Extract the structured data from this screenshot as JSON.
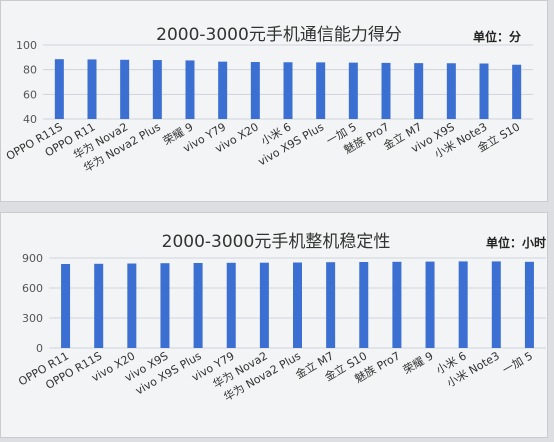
{
  "colors": {
    "bar": "#3b6fd2",
    "grid": "#cfd3da",
    "panel": "#f3f4f5"
  },
  "chart_data": [
    {
      "type": "bar",
      "title": "2000-3000元手机通信能力得分",
      "unit": "单位：分",
      "xlabel": "",
      "ylabel": "",
      "ylim": [
        40,
        100
      ],
      "yticks": [
        "40",
        "60",
        "80",
        "100"
      ],
      "grid": true,
      "categories": [
        "OPPO R11S",
        "OPPO R11",
        "华为 Nova2",
        "华为 Nova2 Plus",
        "荣耀 9",
        "vivo Y79",
        "vivo X20",
        "小米 6",
        "vivo X9S Plus",
        "一加 5",
        "魅族 Pro7",
        "金立 M7",
        "vivo X9S",
        "小米 Note3",
        "金立 S10"
      ],
      "values": [
        88.5,
        88.3,
        88.0,
        87.8,
        87.5,
        86.5,
        86.2,
        86.0,
        85.9,
        85.7,
        85.5,
        85.3,
        85.2,
        85.0,
        84.0
      ]
    },
    {
      "type": "bar",
      "title": "2000-3000元手机整机稳定性",
      "unit": "单位：小时",
      "xlabel": "",
      "ylabel": "",
      "ylim": [
        0,
        900
      ],
      "yticks": [
        "0",
        "300",
        "600",
        "900"
      ],
      "grid": true,
      "categories": [
        "OPPO R11",
        "OPPO R11S",
        "vivo X20",
        "vivo X9S",
        "vivo X9S Plus",
        "vivo Y79",
        "华为 Nova2",
        "华为 Nova2 Plus",
        "金立 M7",
        "金立 S10",
        "魅族 Pro7",
        "荣耀 9",
        "小米 6",
        "小米 Note3",
        "一加 5"
      ],
      "values": [
        840,
        842,
        845,
        848,
        850,
        852,
        853,
        855,
        858,
        860,
        862,
        864,
        866,
        866,
        862
      ]
    }
  ]
}
